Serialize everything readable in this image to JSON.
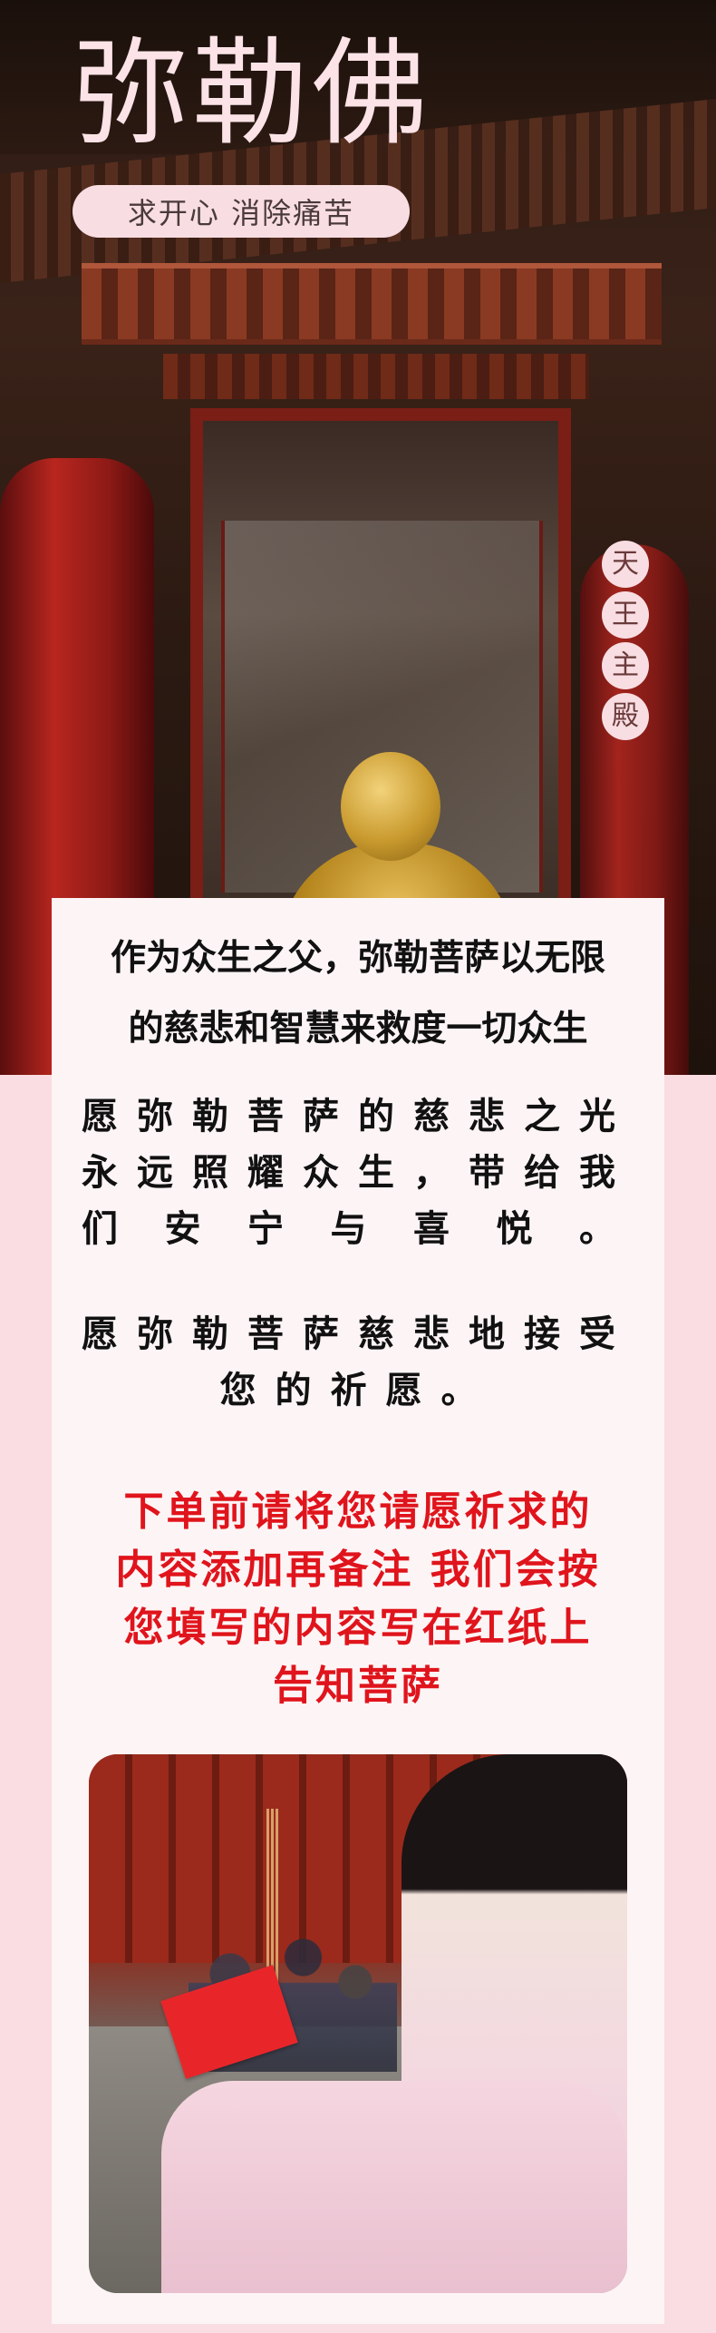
{
  "hero": {
    "title": "弥勒佛",
    "subtitle": "求开心 消除痛苦",
    "hall_tag": [
      "天",
      "王",
      "主",
      "殿"
    ]
  },
  "lead": {
    "line1": "作为众生之父，弥勒菩萨以无限",
    "line2": "的慈悲和智慧来救度一切众生"
  },
  "wish": {
    "first": "愿弥勒菩萨的慈悲之光永远照耀众生，带给我们安宁与喜悦。",
    "second": "愿弥勒菩萨慈悲地接受您的祈愿。"
  },
  "notice": {
    "line1": "下单前请将您请愿祈求的",
    "line2": "内容添加再备注 我们会按",
    "line3": "您填写的内容写在红纸上",
    "line4": "告知菩萨"
  },
  "colors": {
    "page_bg": "#f9dde2",
    "panel_bg": "#fdf4f5",
    "notice_red": "#e0141c"
  }
}
